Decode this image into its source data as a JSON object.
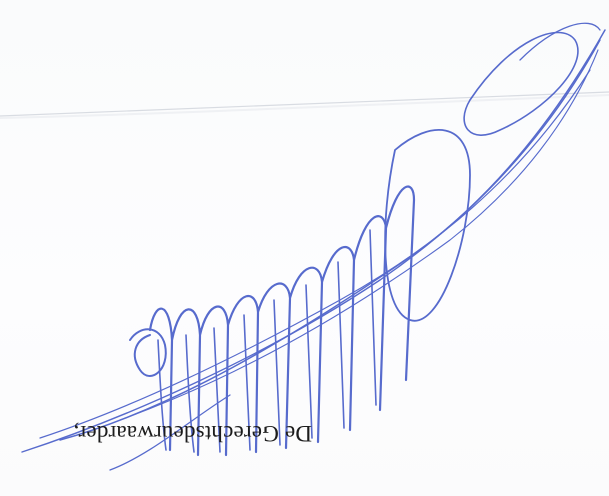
{
  "document": {
    "caption": "De Gerechtsdeurwaarder,",
    "caption_orientation": "upside-down",
    "signature_color": "#4a5fc9",
    "paper_color": "#fcfcfd",
    "fold_line_color": "#c9cdd6"
  }
}
